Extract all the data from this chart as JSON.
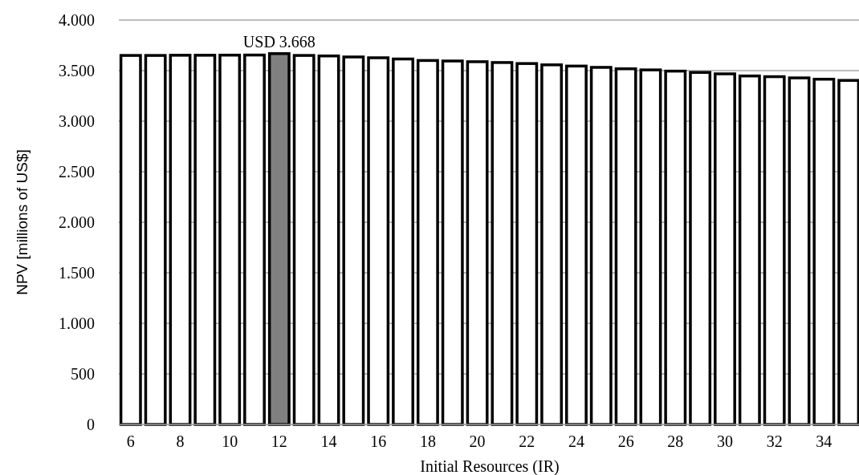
{
  "chart_data": {
    "type": "bar",
    "xlabel": "Initial Resources (IR)",
    "ylabel": "NPV [millions of US$]",
    "categories": [
      "6",
      null,
      "8",
      null,
      "10",
      null,
      "12",
      null,
      "14",
      null,
      "16",
      null,
      "18",
      null,
      "20",
      null,
      "22",
      null,
      "24",
      null,
      "26",
      null,
      "28",
      null,
      "30",
      null,
      "32",
      null,
      "34",
      null
    ],
    "values": [
      3650,
      3650,
      3652,
      3652,
      3653,
      3654,
      3668,
      3650,
      3645,
      3635,
      3627,
      3615,
      3600,
      3595,
      3588,
      3580,
      3570,
      3557,
      3545,
      3532,
      3518,
      3507,
      3495,
      3482,
      3468,
      3447,
      3440,
      3428,
      3415,
      3403
    ],
    "colors": [
      "#ffffff",
      "#ffffff",
      "#ffffff",
      "#ffffff",
      "#ffffff",
      "#ffffff",
      "#808080",
      "#ffffff",
      "#ffffff",
      "#ffffff",
      "#ffffff",
      "#ffffff",
      "#ffffff",
      "#ffffff",
      "#ffffff",
      "#ffffff",
      "#ffffff",
      "#ffffff",
      "#ffffff",
      "#ffffff",
      "#ffffff",
      "#ffffff",
      "#ffffff",
      "#ffffff",
      "#ffffff",
      "#ffffff",
      "#ffffff",
      "#ffffff",
      "#ffffff",
      "#ffffff"
    ],
    "ylim": [
      0,
      4000
    ],
    "yticks": [
      0,
      500,
      {
        "value": 1000,
        "label": "1.000"
      },
      {
        "value": 1500,
        "label": "1.500"
      },
      {
        "value": 2000,
        "label": "2.000"
      },
      {
        "value": 2500,
        "label": "2.500"
      },
      {
        "value": 3000,
        "label": "3.000"
      },
      {
        "value": 3500,
        "label": "3.500"
      },
      {
        "value": 4000,
        "label": "4.000"
      }
    ],
    "grid": "y",
    "annotations": [
      {
        "text": "USD 3.668",
        "x": "12",
        "y": 3668
      }
    ]
  }
}
